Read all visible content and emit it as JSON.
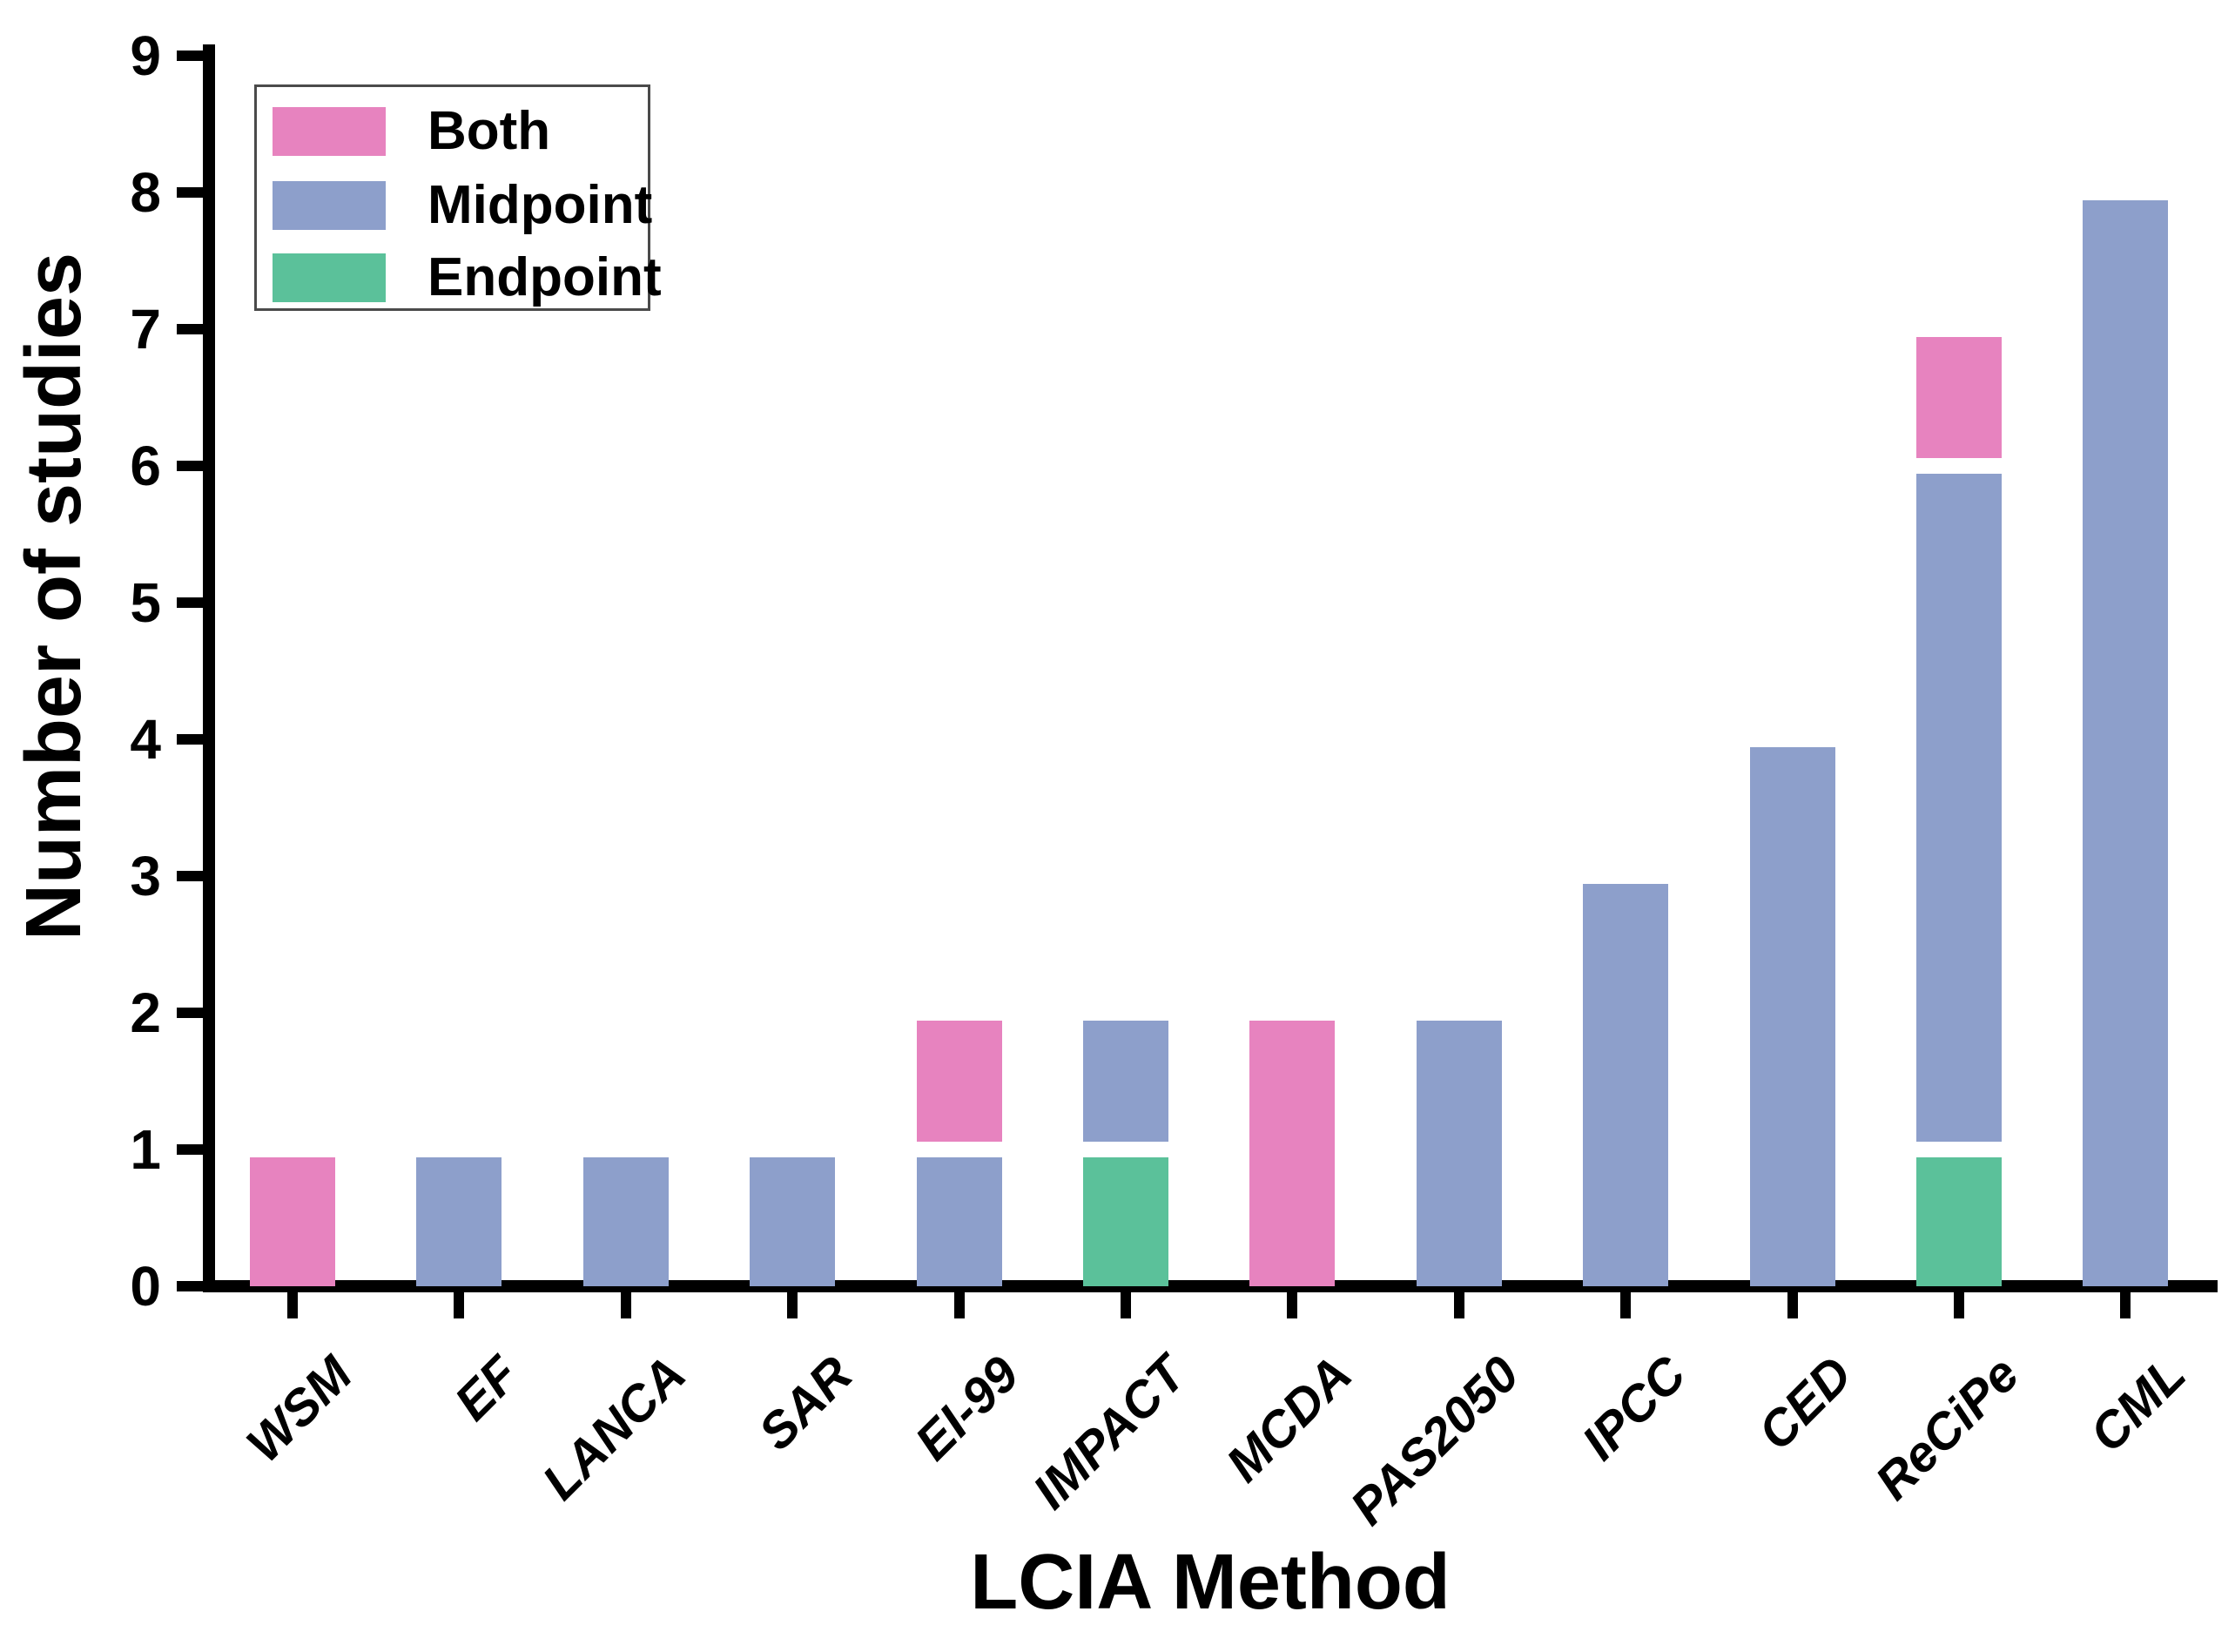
{
  "chart_data": {
    "type": "bar",
    "stacked": true,
    "title": "",
    "xlabel": "LCIA Method",
    "ylabel": "Number of studies",
    "categories": [
      "WSM",
      "EF",
      "LANCA",
      "SAR",
      "EI-99",
      "IMPACT",
      "MCDA",
      "PAS2050",
      "IPCC",
      "CED",
      "ReCiPe",
      "CML"
    ],
    "stack_order": [
      "Endpoint",
      "Midpoint",
      "Both"
    ],
    "series": [
      {
        "name": "Endpoint",
        "color": "#5bc19a",
        "values": [
          0,
          0,
          0,
          0,
          0,
          1,
          0,
          0,
          0,
          0,
          1,
          0
        ]
      },
      {
        "name": "Midpoint",
        "color": "#8d9fcb",
        "values": [
          0,
          1,
          1,
          1,
          1,
          1,
          0,
          2,
          3,
          4,
          5,
          8
        ]
      },
      {
        "name": "Both",
        "color": "#e783bf",
        "values": [
          1,
          0,
          0,
          0,
          1,
          0,
          2,
          0,
          0,
          0,
          1,
          0
        ]
      }
    ],
    "totals": [
      1,
      1,
      1,
      1,
      2,
      2,
      2,
      2,
      3,
      4,
      7,
      8
    ],
    "ylim": [
      0,
      9
    ],
    "y_ticks": [
      0,
      1,
      2,
      3,
      4,
      5,
      6,
      7,
      8,
      9
    ],
    "grid": false,
    "legend_position": "top-left",
    "legend": [
      {
        "label": "Both",
        "color": "#e783bf"
      },
      {
        "label": "Midpoint",
        "color": "#8d9fcb"
      },
      {
        "label": "Endpoint",
        "color": "#5bc19a"
      }
    ],
    "axis_color": "#000000"
  }
}
